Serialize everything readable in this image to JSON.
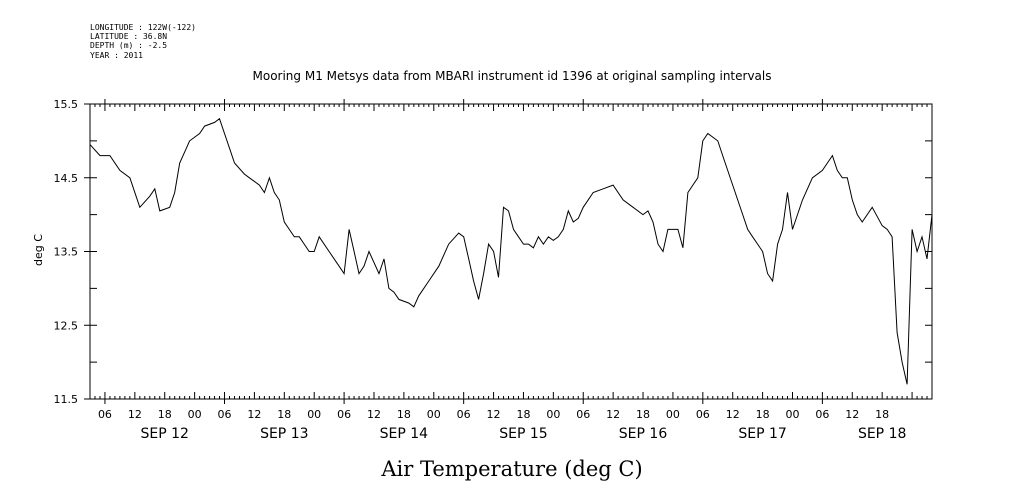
{
  "header": {
    "meta_lines": [
      "LONGITUDE : 122W(-122)",
      "LATITUDE : 36.8N",
      "DEPTH (m) : -2.5",
      "YEAR : 2011"
    ],
    "title": "Mooring M1 Metsys data from MBARI instrument id 1396 at original sampling intervals"
  },
  "chart_data": {
    "type": "line",
    "title": "Mooring M1 Metsys data from MBARI instrument id 1396 at original sampling intervals",
    "xlabel": "Air Temperature (deg C)",
    "ylabel": "deg C",
    "xlim": [
      "SEP 11 2011 21:00",
      "SEP 18 2011 22:00"
    ],
    "ylim": [
      11.5,
      15.5
    ],
    "y_ticks": [
      "15.5",
      "14.5",
      "13.5",
      "12.5",
      "11.5"
    ],
    "x_hour_labels": [
      "06",
      "12",
      "18",
      "00",
      "06",
      "12",
      "18",
      "00",
      "06",
      "12",
      "18",
      "00",
      "06",
      "12",
      "18",
      "00",
      "06",
      "12",
      "18",
      "00",
      "06",
      "12",
      "18",
      "00",
      "06",
      "12",
      "18"
    ],
    "x_day_labels": [
      "SEP 12",
      "SEP 13",
      "SEP 14",
      "SEP 15",
      "SEP 16",
      "SEP 17",
      "SEP 18"
    ],
    "grid": false,
    "series": [
      {
        "x": [
          "SEP 11 21:00",
          "SEP 11 23:00",
          "SEP 12 01:00",
          "SEP 12 03:00",
          "SEP 12 05:00",
          "SEP 12 07:00",
          "SEP 12 09:00",
          "SEP 12 10:00",
          "SEP 12 11:00",
          "SEP 12 13:00",
          "SEP 12 14:00",
          "SEP 12 15:00",
          "SEP 12 16:00",
          "SEP 12 17:00",
          "SEP 12 19:00",
          "SEP 12 20:00",
          "SEP 12 22:00",
          "SEP 12 23:00",
          "SEP 13 00:00",
          "SEP 13 01:00",
          "SEP 13 02:00",
          "SEP 13 04:00",
          "SEP 13 05:00",
          "SEP 13 07:00",
          "SEP 13 08:00",
          "SEP 13 09:00",
          "SEP 13 10:00",
          "SEP 13 11:00",
          "SEP 13 12:00",
          "SEP 13 13:00",
          "SEP 13 14:00",
          "SEP 13 15:00",
          "SEP 13 16:00",
          "SEP 13 17:00",
          "SEP 13 18:00",
          "SEP 13 19:00",
          "SEP 13 21:00",
          "SEP 13 23:00",
          "SEP 14 00:00",
          "SEP 14 01:00",
          "SEP 14 02:00",
          "SEP 14 03:00",
          "SEP 14 04:00",
          "SEP 14 05:00",
          "SEP 14 07:00",
          "SEP 14 08:00",
          "SEP 14 09:00",
          "SEP 14 10:00",
          "SEP 14 11:00",
          "SEP 14 13:00",
          "SEP 14 14:00",
          "SEP 14 15:00",
          "SEP 14 17:00",
          "SEP 14 19:00",
          "SEP 14 21:00",
          "SEP 14 23:00",
          "SEP 15 00:00",
          "SEP 15 01:00",
          "SEP 15 02:00",
          "SEP 15 03:00",
          "SEP 15 04:00",
          "SEP 15 05:00",
          "SEP 15 06:00",
          "SEP 15 07:00",
          "SEP 15 08:00",
          "SEP 15 09:00",
          "SEP 15 10:00",
          "SEP 15 11:00",
          "SEP 15 12:00",
          "SEP 15 13:00",
          "SEP 15 14:00",
          "SEP 15 15:00",
          "SEP 15 16:00",
          "SEP 15 17:00",
          "SEP 15 18:00",
          "SEP 15 19:00",
          "SEP 15 20:00",
          "SEP 15 21:00",
          "SEP 15 22:00",
          "SEP 15 23:00",
          "SEP 16 00:00",
          "SEP 16 02:00",
          "SEP 16 04:00",
          "SEP 16 06:00",
          "SEP 16 08:00",
          "SEP 16 10:00",
          "SEP 16 12:00",
          "SEP 16 13:00",
          "SEP 16 14:00",
          "SEP 16 15:00",
          "SEP 16 16:00",
          "SEP 16 17:00",
          "SEP 16 19:00",
          "SEP 16 20:00",
          "SEP 16 21:00",
          "SEP 16 23:00",
          "SEP 17 00:00",
          "SEP 17 01:00",
          "SEP 17 03:00",
          "SEP 17 04:00",
          "SEP 17 05:00",
          "SEP 17 06:00",
          "SEP 17 07:00",
          "SEP 17 08:00",
          "SEP 17 09:00",
          "SEP 17 10:00",
          "SEP 17 11:00",
          "SEP 17 12:00",
          "SEP 17 13:00",
          "SEP 17 14:00",
          "SEP 17 15:00",
          "SEP 17 16:00",
          "SEP 17 17:00",
          "SEP 17 18:00",
          "SEP 17 19:00",
          "SEP 17 20:00",
          "SEP 17 22:00",
          "SEP 18 00:00",
          "SEP 18 01:00",
          "SEP 18 02:00",
          "SEP 18 03:00",
          "SEP 18 04:00",
          "SEP 18 05:00",
          "SEP 18 06:00",
          "SEP 18 07:00",
          "SEP 18 08:00",
          "SEP 18 10:00",
          "SEP 18 12:00",
          "SEP 18 13:00",
          "SEP 18 14:00",
          "SEP 18 15:00",
          "SEP 18 16:00",
          "SEP 18 17:00",
          "SEP 18 18:00",
          "SEP 18 19:00",
          "SEP 18 20:00",
          "SEP 18 21:00",
          "SEP 18 22:00"
        ],
        "y": [
          14.95,
          14.8,
          14.8,
          14.6,
          14.5,
          14.1,
          14.25,
          14.35,
          14.05,
          14.1,
          14.3,
          14.7,
          14.85,
          15.0,
          15.1,
          15.2,
          15.25,
          15.3,
          15.1,
          14.9,
          14.7,
          14.55,
          14.5,
          14.4,
          14.3,
          14.5,
          14.3,
          14.2,
          13.9,
          13.8,
          13.7,
          13.7,
          13.6,
          13.5,
          13.5,
          13.7,
          13.5,
          13.3,
          13.2,
          13.8,
          13.5,
          13.2,
          13.3,
          13.5,
          13.2,
          13.4,
          13.0,
          12.95,
          12.85,
          12.8,
          12.75,
          12.9,
          13.1,
          13.3,
          13.6,
          13.75,
          13.7,
          13.4,
          13.1,
          12.85,
          13.2,
          13.6,
          13.5,
          13.15,
          14.1,
          14.05,
          13.8,
          13.7,
          13.6,
          13.6,
          13.55,
          13.7,
          13.6,
          13.7,
          13.65,
          13.7,
          13.8,
          14.05,
          13.9,
          13.95,
          14.1,
          14.3,
          14.35,
          14.4,
          14.2,
          14.1,
          14.0,
          14.05,
          13.9,
          13.6,
          13.5,
          13.8,
          13.8,
          13.55,
          14.3,
          14.5,
          15.0,
          15.1,
          15.0,
          14.8,
          14.6,
          14.4,
          14.2,
          14.0,
          13.8,
          13.7,
          13.6,
          13.5,
          13.2,
          13.1,
          13.6,
          13.8,
          14.3,
          13.8,
          14.0,
          14.2,
          14.5,
          14.6,
          14.7,
          14.8,
          14.6,
          14.5,
          14.5,
          14.2,
          14.0,
          13.9,
          14.1,
          13.85,
          13.8,
          13.7,
          12.4,
          12.0,
          11.7,
          13.8,
          13.5,
          13.7,
          13.4,
          14.0
        ]
      }
    ]
  }
}
